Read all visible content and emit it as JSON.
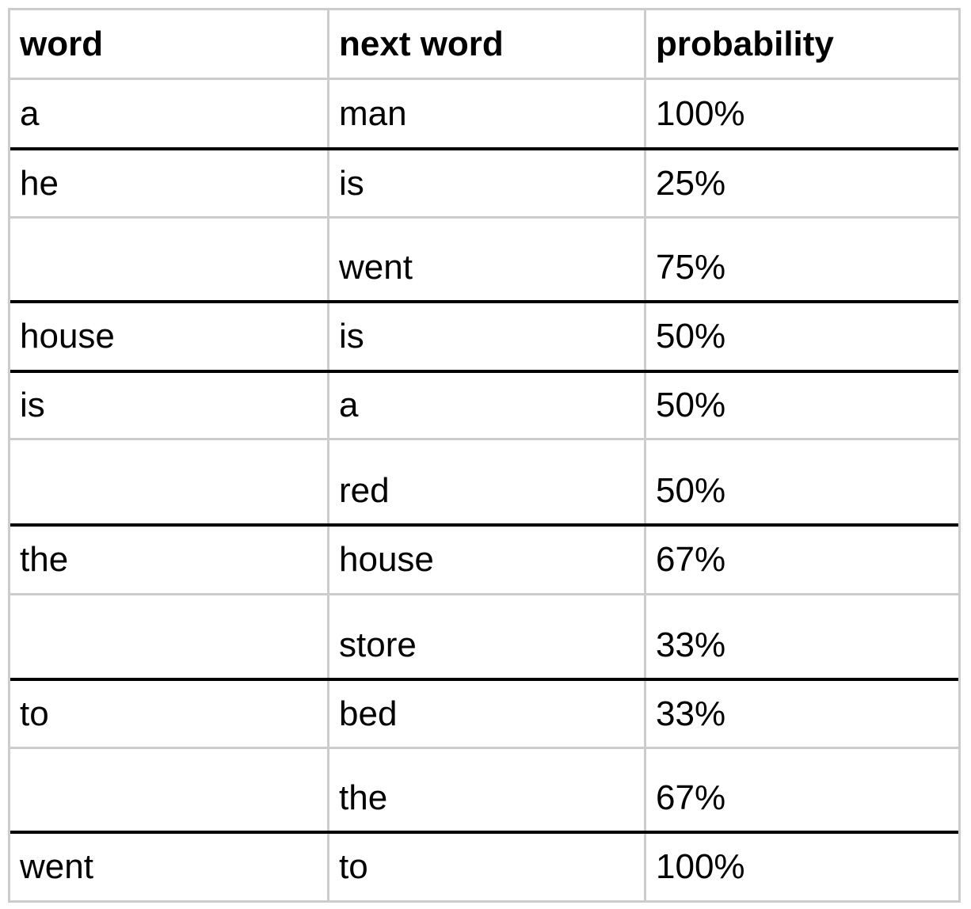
{
  "table": {
    "headers": [
      "word",
      "next word",
      "probability"
    ],
    "rows": [
      {
        "word": "a",
        "next": "man",
        "probability": "100%"
      },
      {
        "word": "he",
        "next": "is",
        "probability": "25%"
      },
      {
        "word": "",
        "next": "went",
        "probability": "75%"
      },
      {
        "word": "house",
        "next": "is",
        "probability": "50%"
      },
      {
        "word": "is",
        "next": "a",
        "probability": "50%"
      },
      {
        "word": "",
        "next": "red",
        "probability": "50%"
      },
      {
        "word": "the",
        "next": "house",
        "probability": "67%"
      },
      {
        "word": "",
        "next": "store",
        "probability": "33%"
      },
      {
        "word": "to",
        "next": "bed",
        "probability": "33%"
      },
      {
        "word": "",
        "next": "the",
        "probability": "67%"
      },
      {
        "word": "went",
        "next": "to",
        "probability": "100%"
      }
    ]
  }
}
